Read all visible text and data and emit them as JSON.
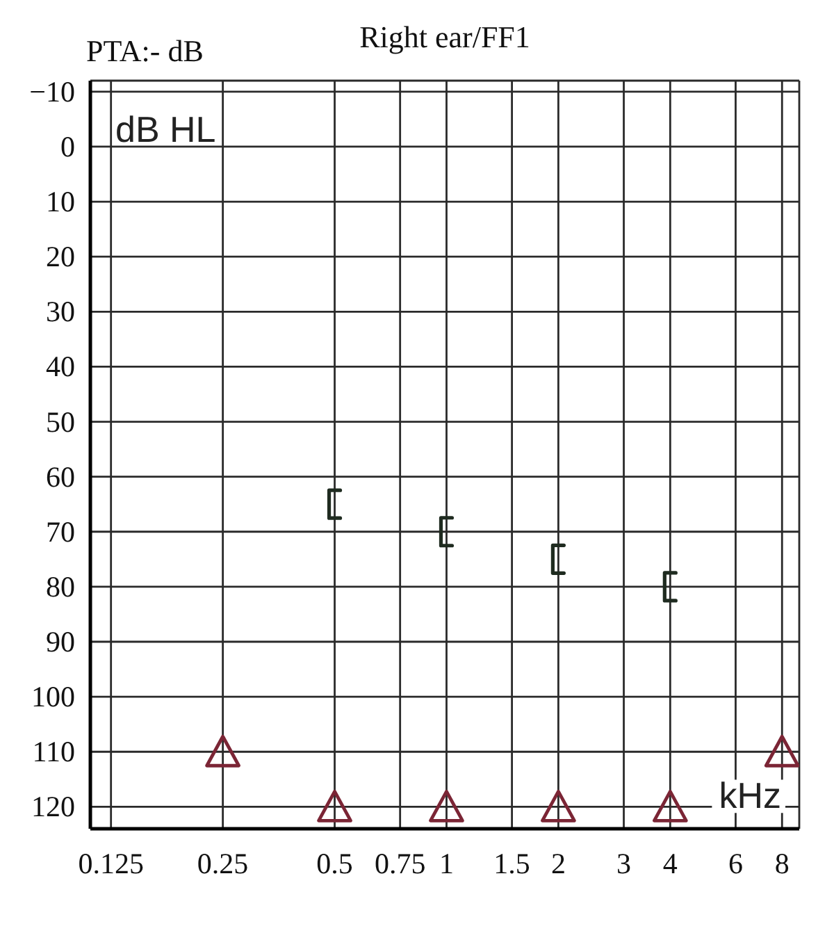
{
  "chart_data": {
    "type": "scatter",
    "title": "Right ear/FF1",
    "subtitle": "PTA:- dB",
    "xlabel": "kHz",
    "ylabel": "dB HL",
    "log": "x",
    "xlim": [
      0.11,
      8.9
    ],
    "xticks": [
      0.125,
      0.25,
      0.5,
      0.75,
      1,
      1.5,
      2,
      3,
      4,
      6,
      8
    ],
    "ylim": [
      124,
      -12
    ],
    "yticks": [
      {
        "value": -10,
        "label": "−10"
      },
      0,
      10,
      20,
      30,
      40,
      50,
      60,
      70,
      80,
      90,
      100,
      110,
      120
    ],
    "grid": true,
    "series": [
      {
        "color": "#1f2b20",
        "x": [
          0.5,
          1,
          2,
          4
        ],
        "values": [
          65,
          70,
          75,
          80
        ]
      },
      {
        "color": "#7b2535",
        "x": [
          0.25,
          0.5,
          1,
          2,
          4,
          8
        ],
        "values": [
          110,
          120,
          120,
          120,
          120,
          110
        ],
        "marker": "triangle"
      }
    ]
  }
}
